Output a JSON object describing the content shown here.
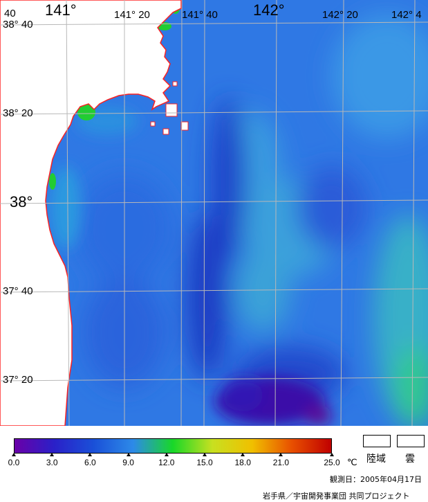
{
  "map": {
    "lon_labels": [
      {
        "text": "141°",
        "size": "big"
      },
      {
        "text": "141° 20",
        "size": "small"
      },
      {
        "text": "141° 40",
        "size": "small"
      },
      {
        "text": "142°",
        "size": "big"
      },
      {
        "text": "142° 20",
        "size": "small"
      },
      {
        "text": "142° 4",
        "size": "small"
      }
    ],
    "corner_label": "40",
    "lat_labels": [
      {
        "text": "38° 40",
        "size": "small"
      },
      {
        "text": "38° 20",
        "size": "small"
      },
      {
        "text": "38°",
        "size": "big"
      },
      {
        "text": "37° 40",
        "size": "small"
      },
      {
        "text": "37° 20",
        "size": "small"
      }
    ],
    "colors": {
      "coastline": "#ff2020",
      "land": "#ffffff",
      "grid": "#b8b8b8",
      "coastal_green": "#22cc33"
    }
  },
  "colorbar": {
    "unit": "℃",
    "min": 0.0,
    "max": 25.0,
    "ticks": [
      "0.0",
      "3.0",
      "6.0",
      "9.0",
      "12.0",
      "15.0",
      "18.0",
      "21.0",
      "25.0"
    ],
    "stops": [
      "#6a00a8",
      "#2a20c8",
      "#1a50d8",
      "#2d8ae8",
      "#18d828",
      "#c8e020",
      "#f0c000",
      "#e85000",
      "#c00000"
    ]
  },
  "legend": {
    "land_label": "陸域",
    "cloud_label": "雲"
  },
  "footer": {
    "observation_date": "観測日：2005年04月17日",
    "credit": "岩手県／宇宙開発事業団 共同プロジェクト"
  }
}
